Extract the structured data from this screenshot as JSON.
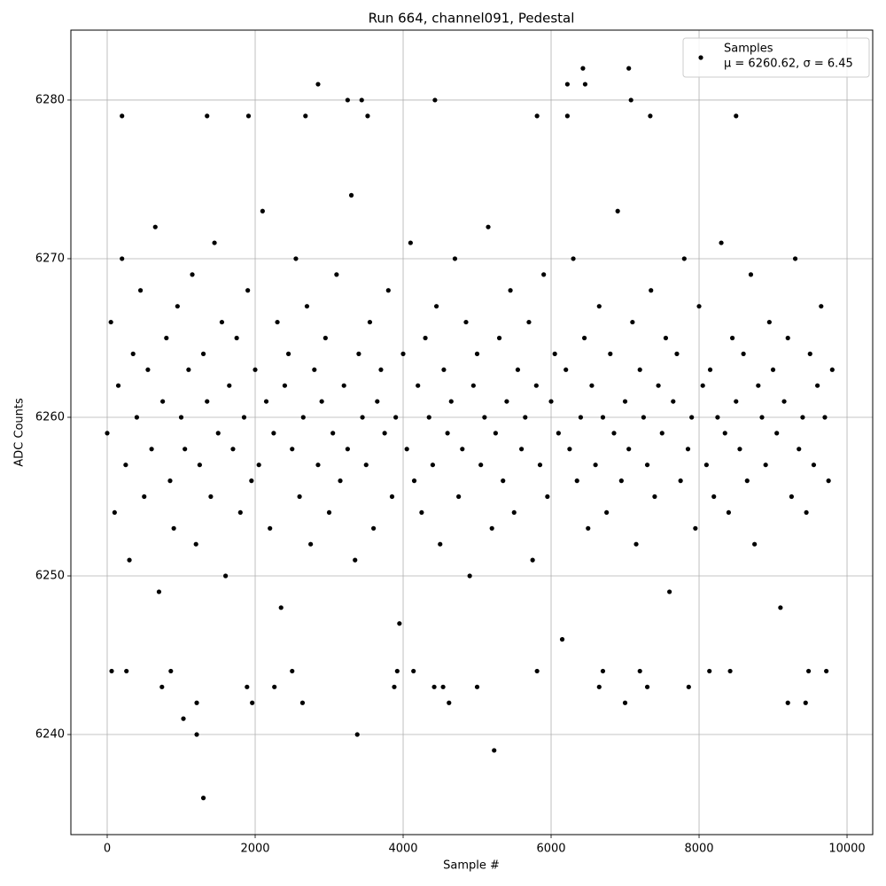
{
  "chart_data": {
    "type": "scatter",
    "title": "Run 664, channel091, Pedestal",
    "x_label": "Sample #",
    "y_label": "ADC Counts",
    "xlim": [
      -491,
      10347
    ],
    "ylim": [
      6233.69,
      6284.41
    ],
    "xticks": [
      0,
      2000,
      4000,
      6000,
      8000,
      10000
    ],
    "yticks": [
      6240,
      6250,
      6260,
      6270,
      6280
    ],
    "grid": true,
    "legend_position": "upper right",
    "series": [
      {
        "name": "Samples",
        "legend_note": "μ = 6260.62, σ = 6.45",
        "color": "#000000",
        "x": [
          0,
          50,
          100,
          150,
          200,
          250,
          300,
          350,
          400,
          450,
          500,
          550,
          600,
          650,
          700,
          750,
          800,
          850,
          900,
          950,
          1000,
          1050,
          1100,
          1150,
          1200,
          1250,
          1300,
          1350,
          1400,
          1450,
          1500,
          1550,
          1600,
          1650,
          1700,
          1750,
          1800,
          1850,
          1900,
          1950,
          2000,
          2050,
          2100,
          2150,
          2200,
          2250,
          2300,
          2350,
          2400,
          2450,
          2500,
          2550,
          2600,
          2650,
          2700,
          2750,
          2800,
          2850,
          2900,
          2950,
          3000,
          3050,
          3100,
          3150,
          3200,
          3250,
          3300,
          3350,
          3400,
          3450,
          3500,
          3550,
          3600,
          3650,
          3700,
          3750,
          3800,
          3850,
          3900,
          3950,
          4000,
          4050,
          4100,
          4150,
          4200,
          4250,
          4300,
          4350,
          4400,
          4450,
          4500,
          4550,
          4600,
          4650,
          4700,
          4750,
          4800,
          4850,
          4900,
          4950,
          5000,
          5050,
          5100,
          5150,
          5200,
          5250,
          5300,
          5350,
          5400,
          5450,
          5500,
          5550,
          5600,
          5650,
          5700,
          5750,
          5800,
          5850,
          5900,
          5950,
          6000,
          6050,
          6100,
          6150,
          6200,
          6250,
          6300,
          6350,
          6400,
          6450,
          6500,
          6550,
          6600,
          6650,
          6700,
          6750,
          6800,
          6850,
          6900,
          6950,
          7000,
          7050,
          7100,
          7150,
          7200,
          7250,
          7300,
          7350,
          7400,
          7450,
          7500,
          7550,
          7600,
          7650,
          7700,
          7750,
          7800,
          7850,
          7900,
          7950,
          8000,
          8050,
          8100,
          8150,
          8200,
          8250,
          8300,
          8350,
          8400,
          8450,
          8500,
          8550,
          8600,
          8650,
          8700,
          8750,
          8800,
          8850,
          8900,
          8950,
          9000,
          9050,
          9100,
          9150,
          9200,
          9250,
          9300,
          9350,
          9400,
          9450,
          9500,
          9550,
          9600,
          9650,
          9700,
          9750,
          9800,
          1300,
          5230,
          1210,
          3380,
          1030,
          1210,
          1960,
          2640,
          4620,
          7000,
          9200,
          9440,
          2850,
          6430,
          7050,
          6220,
          6460,
          4430,
          3250,
          3440,
          7080,
          200,
          1350,
          1910,
          2680,
          3520,
          5810,
          6220,
          7340,
          8500,
          60,
          260,
          860,
          2500,
          3920,
          4140,
          5810,
          6700,
          7200,
          8140,
          8420,
          9480,
          9720,
          740,
          1890,
          2260,
          3880,
          4420,
          4540,
          5000,
          6650,
          7300,
          7860
        ],
        "values": [
          6259,
          6266,
          6254,
          6262,
          6270,
          6257,
          6251,
          6264,
          6260,
          6268,
          6255,
          6263,
          6258,
          6272,
          6249,
          6261,
          6265,
          6256,
          6253,
          6267,
          6260,
          6258,
          6263,
          6269,
          6252,
          6257,
          6264,
          6261,
          6255,
          6271,
          6259,
          6266,
          6250,
          6262,
          6258,
          6265,
          6254,
          6260,
          6268,
          6256,
          6263,
          6257,
          6273,
          6261,
          6253,
          6259,
          6266,
          6248,
          6262,
          6264,
          6258,
          6270,
          6255,
          6260,
          6267,
          6252,
          6263,
          6257,
          6261,
          6265,
          6254,
          6259,
          6269,
          6256,
          6262,
          6258,
          6274,
          6251,
          6264,
          6260,
          6257,
          6266,
          6253,
          6261,
          6263,
          6259,
          6268,
          6255,
          6260,
          6247,
          6264,
          6258,
          6271,
          6256,
          6262,
          6254,
          6265,
          6260,
          6257,
          6267,
          6252,
          6263,
          6259,
          6261,
          6270,
          6255,
          6258,
          6266,
          6250,
          6262,
          6264,
          6257,
          6260,
          6272,
          6253,
          6259,
          6265,
          6256,
          6261,
          6268,
          6254,
          6263,
          6258,
          6260,
          6266,
          6251,
          6262,
          6257,
          6269,
          6255,
          6261,
          6264,
          6259,
          6246,
          6263,
          6258,
          6270,
          6256,
          6260,
          6265,
          6253,
          6262,
          6257,
          6267,
          6260,
          6254,
          6264,
          6259,
          6273,
          6256,
          6261,
          6258,
          6266,
          6252,
          6263,
          6260,
          6257,
          6268,
          6255,
          6262,
          6259,
          6265,
          6249,
          6261,
          6264,
          6256,
          6270,
          6258,
          6260,
          6253,
          6267,
          6262,
          6257,
          6263,
          6255,
          6260,
          6271,
          6259,
          6254,
          6265,
          6261,
          6258,
          6264,
          6256,
          6269,
          6252,
          6262,
          6260,
          6257,
          6266,
          6263,
          6259,
          6248,
          6261,
          6265,
          6255,
          6270,
          6258,
          6260,
          6254,
          6264,
          6257,
          6262,
          6267,
          6260,
          6256,
          6263,
          6236,
          6239,
          6240,
          6240,
          6241,
          6242,
          6242,
          6242,
          6242,
          6242,
          6242,
          6242,
          6281,
          6282,
          6282,
          6281,
          6281,
          6280,
          6280,
          6280,
          6280,
          6279,
          6279,
          6279,
          6279,
          6279,
          6279,
          6279,
          6279,
          6279,
          6244,
          6244,
          6244,
          6244,
          6244,
          6244,
          6244,
          6244,
          6244,
          6244,
          6244,
          6244,
          6244,
          6243,
          6243,
          6243,
          6243,
          6243,
          6243,
          6243,
          6243,
          6243,
          6243
        ]
      }
    ]
  }
}
